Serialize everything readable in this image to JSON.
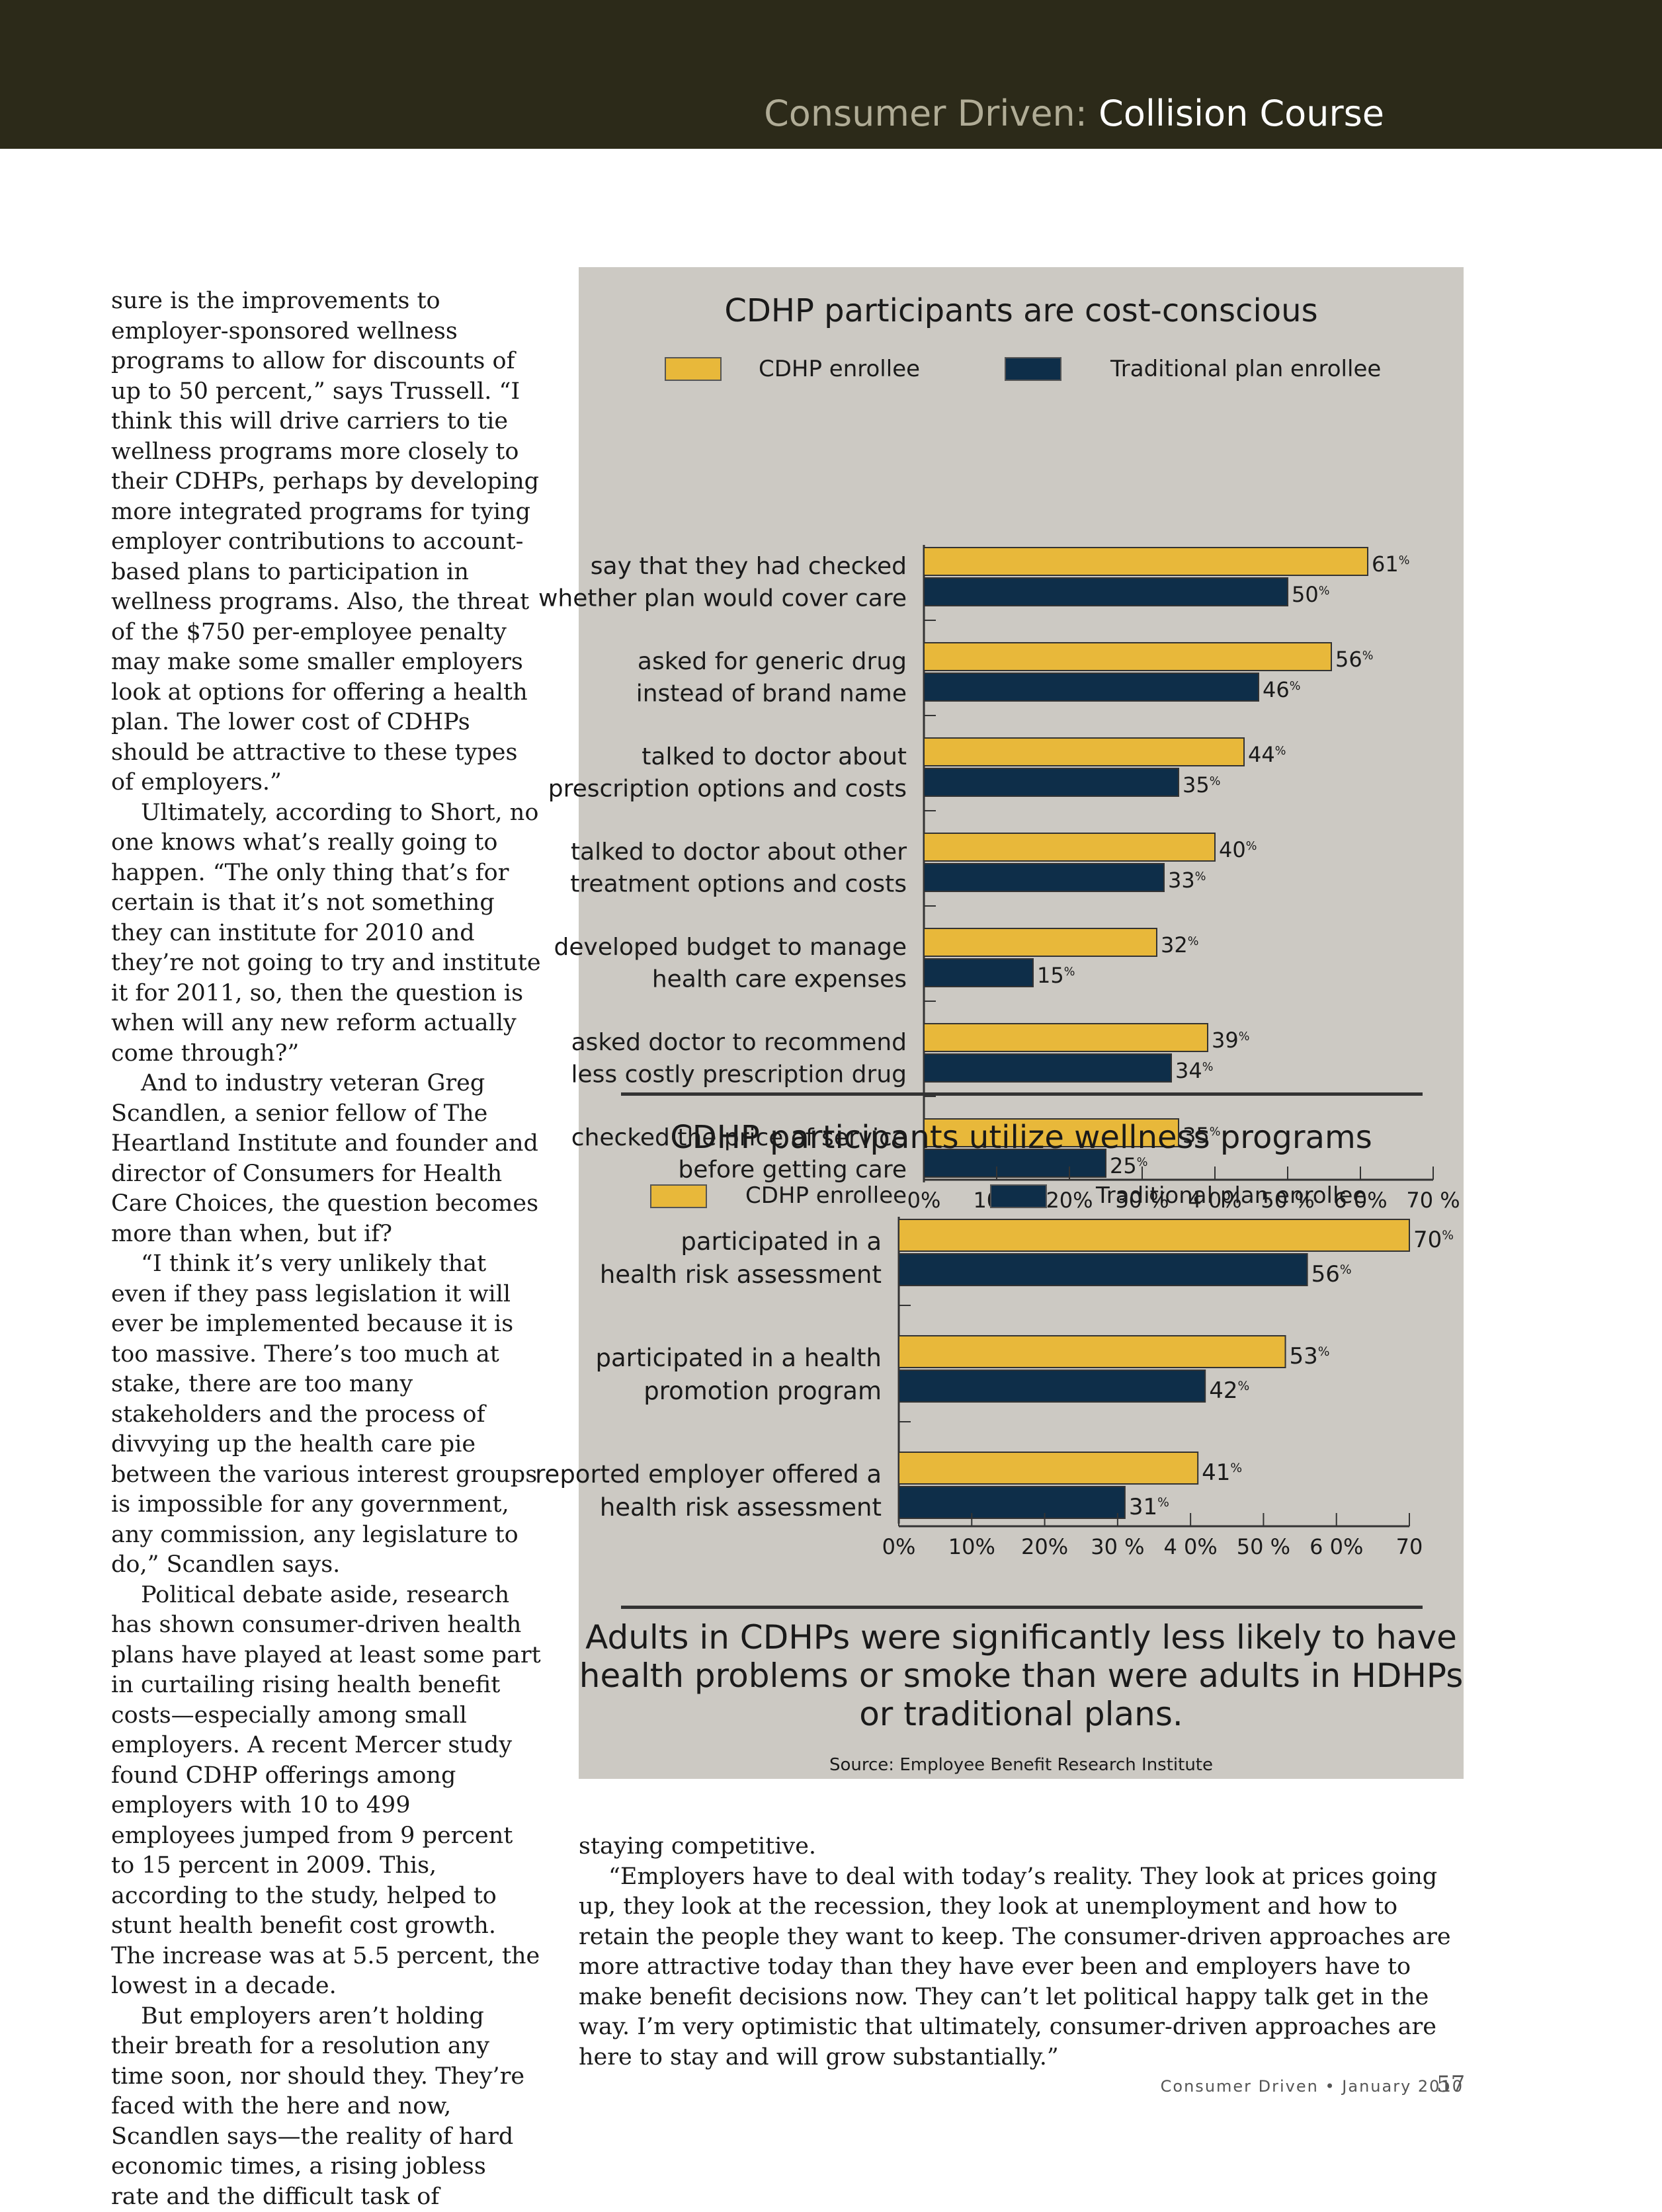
{
  "header": {
    "section": "Consumer Driven:",
    "title": "Collision Course"
  },
  "left_column": [
    {
      "text": "sure is the improvements to employer-sponsored wellness programs to allow for discounts of up to 50 percent,” says Trussell. “I think this will drive carriers to tie wellness programs more closely to their CDHPs, perhaps by developing more integrated programs for tying employer contributions to account-based plans to participation in wellness programs. Also, the threat of the $750 per-employee penalty may make some smaller employers look at options for offering a health plan. The lower cost of CDHPs should be attractive to these types of employers.”",
      "indent": false
    },
    {
      "text": "Ultimately, according to Short, no one knows what’s really going to happen. “The only thing that’s for certain is that it’s not something they can institute for 2010 and they’re not going to try and institute it for 2011, so, then the question is when will any new reform actually come through?”",
      "indent": true
    },
    {
      "text": "And to industry veteran Greg Scandlen, a senior fellow of The Heartland Institute and founder and director of Consumers for Health Care Choices, the question becomes more than when, but if?",
      "indent": true
    },
    {
      "text": "“I think it’s very unlikely that even if they pass legislation it will ever be implemented because it is too massive. There’s too much at stake, there are too many stakeholders and the process of divvying up the health care pie between the various interest groups is impossible for any government, any commission, any legislature to do,” Scandlen says.",
      "indent": true
    },
    {
      "text": "Political debate aside, research has shown consumer-driven health plans have played at least some part in curtailing rising health benefit costs—especially among small employers. A recent Mercer study found CDHP offerings among employers with 10 to 499 employees jumped from 9 percent to 15 percent in 2009. This, according to the study, helped to stunt health benefit cost growth. The increase was at 5.5 percent, the lowest in a decade.",
      "indent": true
    },
    {
      "text": "But employers aren’t holding their breath for a resolution any time soon, nor should they. They’re faced with the here and now, Scandlen says—the reality of hard economic times, a rising jobless rate and the difficult task of",
      "indent": true
    }
  ],
  "right_column": [
    {
      "text": "staying competitive.",
      "indent": false
    },
    {
      "text": "“Employers have to deal with today’s reality. They look at prices going up, they look at the recession, they look at unemployment and how to retain the people they want to keep. The consumer-driven approaches are more attractive today than they have ever been and employers have to make benefit decisions now. They can’t let political happy talk get in the way. I’m very optimistic that ultimately, consumer-driven approaches are here to stay and will grow substantially.”",
      "indent": true
    }
  ],
  "colors": {
    "cdhp": "#e8b83a",
    "traditional": "#0e2e49"
  },
  "chart_data": [
    {
      "type": "bar",
      "orientation": "horizontal",
      "title": "CDHP participants are cost-conscious",
      "categories": [
        [
          "say that they had checked",
          "whether plan would cover care"
        ],
        [
          "asked for generic drug",
          "instead of brand name"
        ],
        [
          "talked to doctor about",
          "prescription options and costs"
        ],
        [
          "talked to doctor about other",
          "treatment options and costs"
        ],
        [
          "developed budget to manage",
          "health care expenses"
        ],
        [
          "asked doctor to recommend",
          "less costly prescription drug"
        ],
        [
          "checked the price of service",
          "before getting care"
        ]
      ],
      "series": [
        {
          "name": "CDHP enrollee",
          "values": [
            61,
            56,
            44,
            40,
            32,
            39,
            35
          ]
        },
        {
          "name": "Traditional plan enrollee",
          "values": [
            50,
            46,
            35,
            33,
            15,
            34,
            25
          ]
        }
      ],
      "value_suffix": "%",
      "xlim": [
        0,
        70
      ],
      "tick_labels": [
        "0%",
        "10%",
        "20%",
        "30 %",
        "4 0%",
        "50 %",
        "6 0%",
        "70 %"
      ],
      "legend": "top"
    },
    {
      "type": "bar",
      "orientation": "horizontal",
      "title": "CDHP participants utilize wellness programs",
      "categories": [
        [
          "participated in a",
          "health risk assessment"
        ],
        [
          "participated in a health",
          "promotion program"
        ],
        [
          "reported employer offered a",
          "health risk assessment"
        ]
      ],
      "series": [
        {
          "name": "CDHP enrollee",
          "values": [
            70,
            53,
            41
          ]
        },
        {
          "name": "Traditional plan enrollee",
          "values": [
            56,
            42,
            31
          ]
        }
      ],
      "value_suffix": "%",
      "xlim": [
        0,
        70
      ],
      "tick_labels": [
        "0%",
        "10%",
        "20%",
        "30 %",
        "4 0%",
        "50 %",
        "6 0%",
        "70"
      ],
      "legend": "top"
    }
  ],
  "panel": {
    "note": "Adults in CDHPs were significantly less likely to have health problems or smoke than were adults in HDHPs or traditional plans.",
    "source": "Source: Employee Benefit Research Institute"
  },
  "footer": {
    "publication": "Consumer Driven",
    "date": "January 2010",
    "page": "57"
  }
}
